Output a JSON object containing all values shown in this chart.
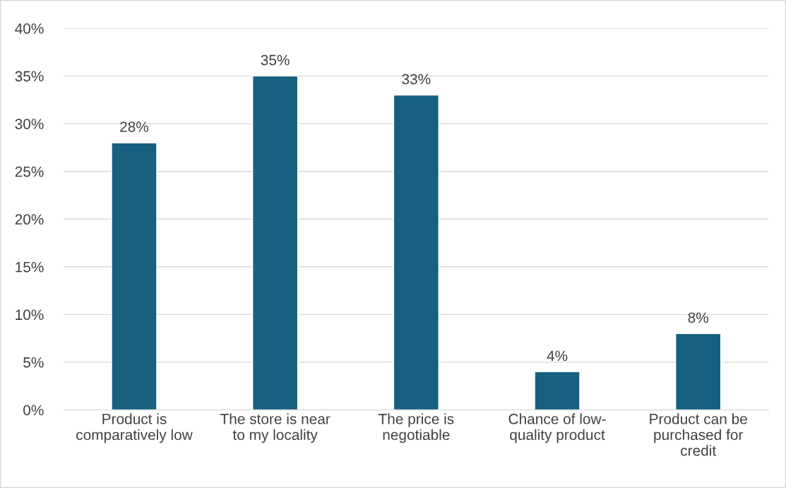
{
  "chart_data": {
    "type": "bar",
    "categories": [
      "Product is\ncomparatively low",
      "The store is near\nto my locality",
      "The price is\nnegotiable",
      "Chance of low-\nquality product",
      "Product can be\npurchased for\ncredit"
    ],
    "values": [
      28,
      35,
      33,
      4,
      8
    ],
    "value_labels": [
      "28%",
      "35%",
      "33%",
      "4%",
      "8%"
    ],
    "color": "#17607f",
    "ylim": [
      0,
      40
    ],
    "yticks": [
      {
        "value": 0,
        "label": "0%"
      },
      {
        "value": 5,
        "label": "5%"
      },
      {
        "value": 10,
        "label": "10%"
      },
      {
        "value": 15,
        "label": "15%"
      },
      {
        "value": 20,
        "label": "20%"
      },
      {
        "value": 25,
        "label": "25%"
      },
      {
        "value": 30,
        "label": "30%"
      },
      {
        "value": 35,
        "label": "35%"
      },
      {
        "value": 40,
        "label": "40%"
      }
    ],
    "grid": "y"
  }
}
